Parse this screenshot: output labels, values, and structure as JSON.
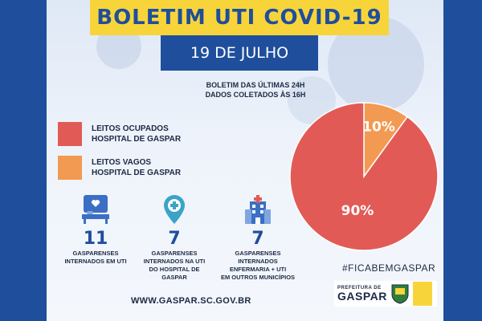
{
  "header": {
    "title": "BOLETIM UTI COVID-19",
    "date": "19 DE JULHO",
    "subtitle_line1": "BOLETIM DAS ÚLTIMAS 24H",
    "subtitle_line2": "DADOS COLETADOS ÀS  16H"
  },
  "chart_data": {
    "type": "pie",
    "series": [
      {
        "name": "LEITOS OCUPADOS HOSPITAL DE GASPAR",
        "value": 90,
        "label": "90%",
        "color": "#e25a55"
      },
      {
        "name": "LEITOS VAGOS HOSPITAL DE GASPAR",
        "value": 10,
        "label": "10%",
        "color": "#f39a52"
      }
    ],
    "legend_placement": "left"
  },
  "legend": {
    "occupied_line1": "LEITOS OCUPADOS",
    "occupied_line2": "HOSPITAL DE GASPAR",
    "vacant_line1": "LEITOS VAGOS",
    "vacant_line2": "HOSPITAL DE GASPAR"
  },
  "stats": [
    {
      "icon": "hospital-bed-icon",
      "value": "11",
      "line1": "GASPARENSES",
      "line2": "INTERNADOS EM UTI",
      "line3": ""
    },
    {
      "icon": "location-cross-icon",
      "value": "7",
      "line1": "GASPARENSES",
      "line2": "INTERNADOS NA UTI",
      "line3": "DO HOSPITAL DE",
      "line4": "GASPAR"
    },
    {
      "icon": "hospital-building-icon",
      "value": "7",
      "line1": "GASPARENSES",
      "line2": "INTERNADOS",
      "line3": "ENFERMARIA + UTI",
      "line4": "EM OUTROS MUNICÍPIOS"
    }
  ],
  "footer": {
    "hashtag": "#FICABEMGASPAR",
    "logo_small": "PREFEITURA DE",
    "logo_big": "GASPAR",
    "website": "WWW.GASPAR.SC.GOV.BR"
  },
  "colors": {
    "background": "#1f4e9c",
    "title_bg": "#f7d53a",
    "primary_text": "#1f4e9c",
    "occupied": "#e25a55",
    "vacant": "#f39a52"
  }
}
